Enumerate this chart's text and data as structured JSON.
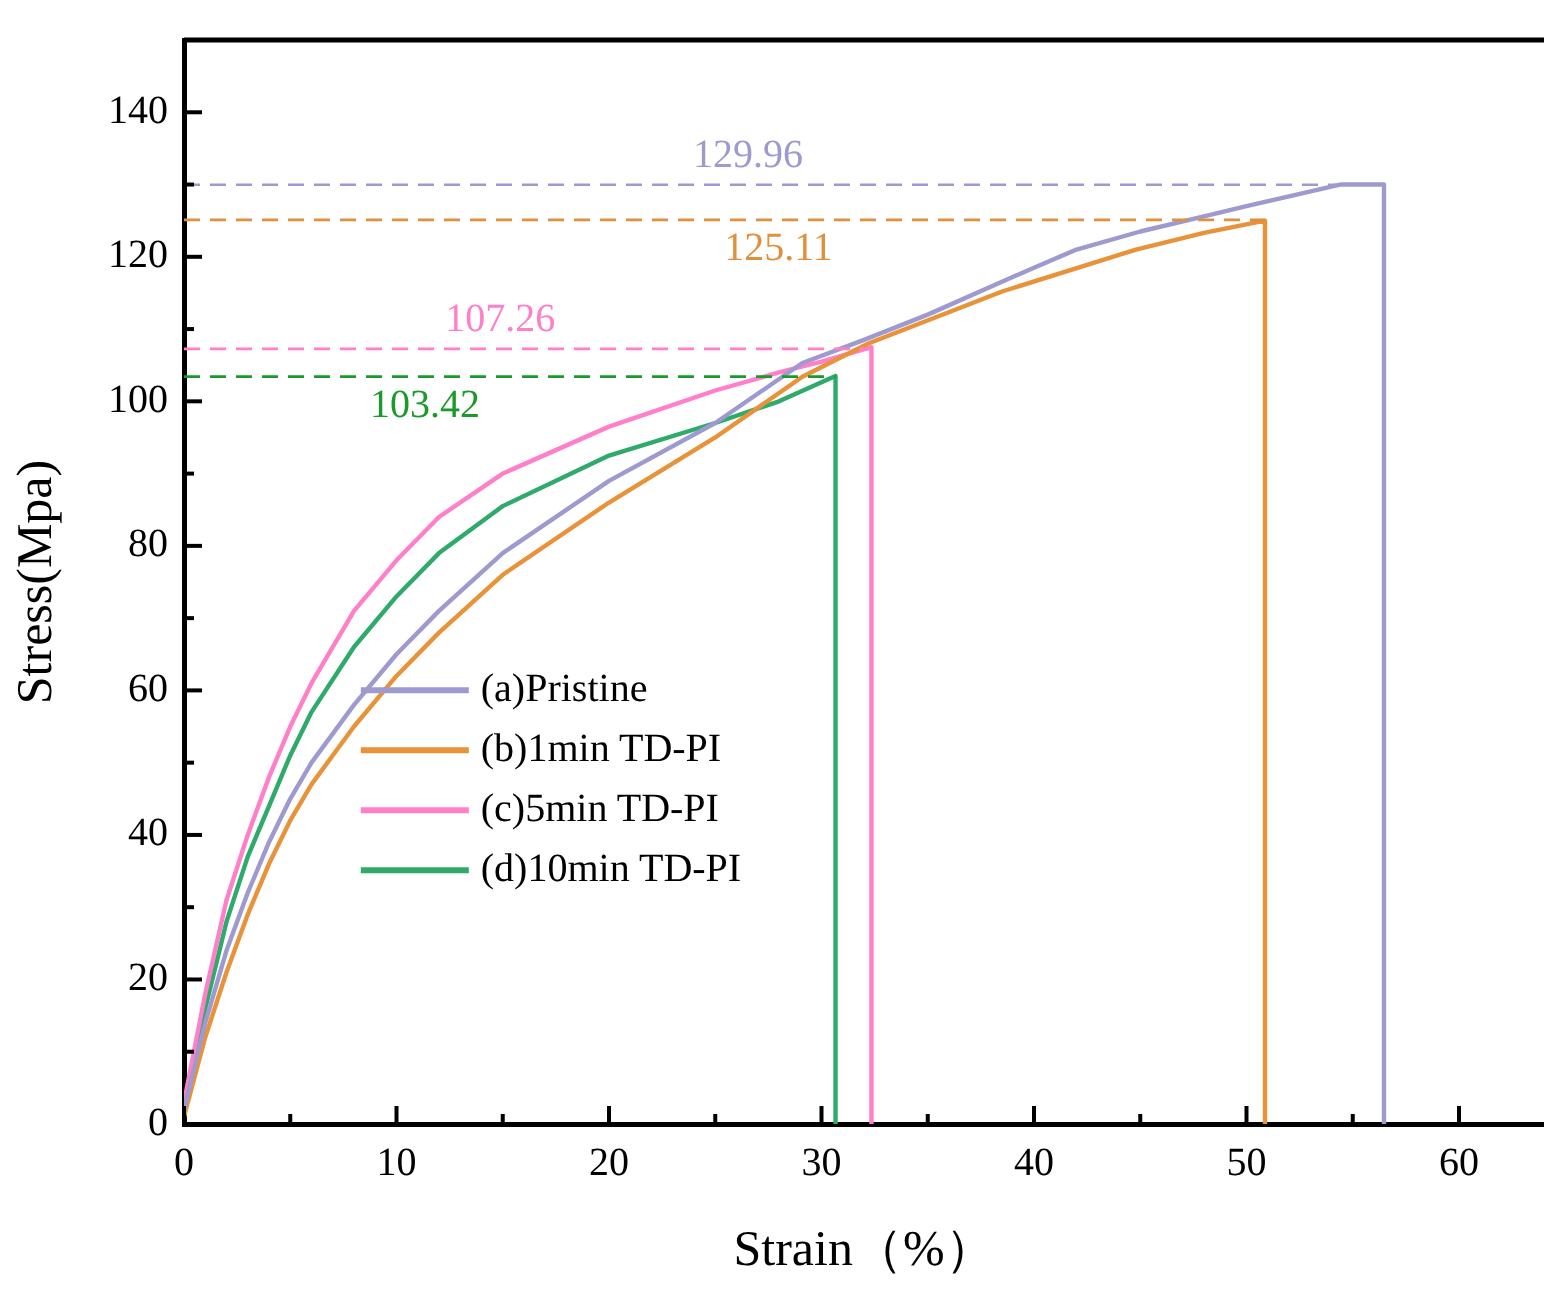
{
  "chart_data": {
    "type": "line",
    "xlabel": "Strain（%）",
    "ylabel": "Stress(Mpa)",
    "xlim": [
      0,
      64
    ],
    "ylim": [
      0,
      150
    ],
    "xticks": [
      0,
      {
        "value": 5,
        "label": null
      },
      10,
      {
        "value": 15,
        "label": null
      },
      20,
      {
        "value": 25,
        "label": null
      },
      30,
      {
        "value": 35,
        "label": null
      },
      40,
      {
        "value": 45,
        "label": null
      },
      50,
      {
        "value": 55,
        "label": null
      },
      60
    ],
    "yticks": [
      0,
      {
        "value": 10,
        "label": null
      },
      20,
      {
        "value": 30,
        "label": null
      },
      40,
      {
        "value": 50,
        "label": null
      },
      60,
      {
        "value": 70,
        "label": null
      },
      80,
      {
        "value": 90,
        "label": null
      },
      100,
      {
        "value": 110,
        "label": null
      },
      120,
      {
        "value": 130,
        "label": null
      },
      140
    ],
    "grid": false,
    "legend": "bottom left",
    "marker": "none",
    "line_style": "solid",
    "series": [
      {
        "name": "(a)Pristine",
        "color": "#9e9ad0",
        "x": [
          0,
          1,
          2,
          3,
          4,
          5,
          6,
          8,
          10,
          12,
          15,
          20,
          25,
          29.1,
          32,
          35,
          40,
          42,
          45,
          48,
          50,
          54.4,
          56.47,
          56.47
        ],
        "values": [
          2,
          14,
          24,
          32,
          39,
          45,
          50,
          58,
          65,
          71,
          79,
          89,
          97,
          105.3,
          108.5,
          112,
          118.5,
          121,
          123.5,
          125.6,
          127,
          130,
          130,
          0
        ]
      },
      {
        "name": "(b)1min TD-PI",
        "color": "#e8923a",
        "x": [
          0,
          1,
          2,
          3,
          4,
          5,
          6,
          8,
          10,
          12,
          15,
          20,
          25,
          29.1,
          32.2,
          38.5,
          44.8,
          48,
          50.87,
          50.87
        ],
        "values": [
          1,
          12,
          21,
          29,
          36,
          42,
          47,
          55,
          62,
          68,
          76,
          86,
          95,
          103.4,
          108,
          115.2,
          121,
          123.3,
          125,
          0
        ]
      },
      {
        "name": "(c)5min TD-PI",
        "color": "#ff7fc8",
        "x": [
          0,
          1,
          2,
          3,
          4,
          5,
          6,
          8,
          10,
          12,
          15,
          20,
          25,
          28,
          30,
          32.35,
          32.35
        ],
        "values": [
          3,
          18,
          31,
          40,
          48,
          55,
          61,
          71,
          78,
          84,
          90,
          96.5,
          101.5,
          104,
          105.5,
          107.5,
          0
        ]
      },
      {
        "name": "(d)10min TD-PI",
        "color": "#2eaa6a",
        "x": [
          0,
          1,
          2,
          3,
          4,
          5,
          6,
          8,
          10,
          12,
          15,
          20,
          25,
          28,
          30.66,
          30.66
        ],
        "values": [
          2,
          16,
          28,
          37,
          44,
          51,
          57,
          66,
          73,
          79,
          85.5,
          92.5,
          97,
          100,
          103.5,
          0
        ]
      }
    ],
    "ref_lines": [
      {
        "axis": "y",
        "value": 129.96,
        "label": "129.96",
        "color": "#9e9ad0",
        "line_style": "dashed"
      },
      {
        "axis": "y",
        "value": 125.11,
        "label": "125.11",
        "color": "#e0903a",
        "line_style": "dashed"
      },
      {
        "axis": "y",
        "value": 107.26,
        "label": "107.26",
        "color": "#ff7fc8",
        "line_style": "dashed"
      },
      {
        "axis": "y",
        "value": 103.42,
        "label": "103.42",
        "color": "#1a9a2a",
        "line_style": "dashed"
      }
    ]
  }
}
